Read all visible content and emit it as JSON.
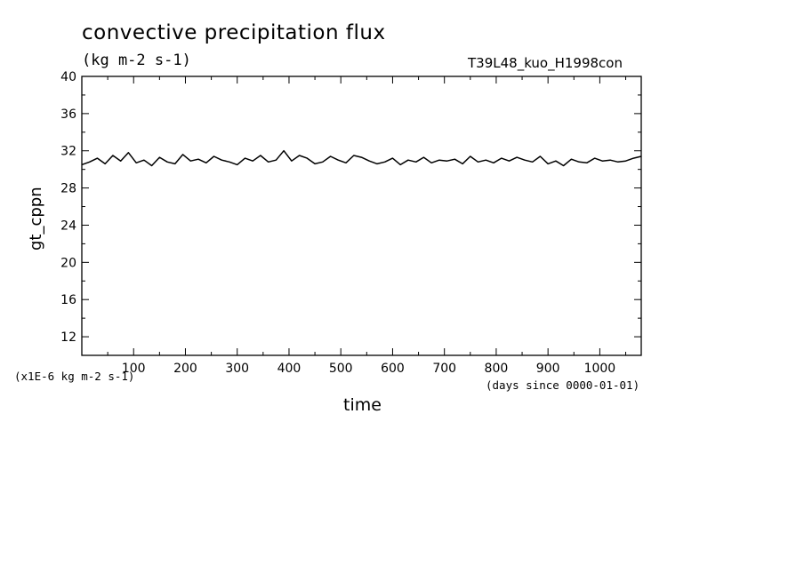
{
  "chart_data": {
    "type": "line",
    "title": "convective precipitation flux",
    "units": "(kg m-2 s-1)",
    "run_label": "T39L48_kuo_H1998con",
    "ylabel": "gt_cppn",
    "xlabel": "time",
    "y_scale_note": "(x1E-6 kg m-2 s-1)",
    "x_units_note": "(days since 0000-01-01)",
    "xlim": [
      0,
      1080
    ],
    "ylim": [
      10,
      40
    ],
    "x_ticks": [
      "100",
      "200",
      "300",
      "400",
      "500",
      "600",
      "700",
      "800",
      "900",
      "1000"
    ],
    "x_tick_values": [
      100,
      200,
      300,
      400,
      500,
      600,
      700,
      800,
      900,
      1000
    ],
    "y_ticks": [
      "12",
      "16",
      "20",
      "24",
      "28",
      "32",
      "36",
      "40"
    ],
    "y_tick_values": [
      12,
      16,
      20,
      24,
      28,
      32,
      36,
      40
    ],
    "series": [
      {
        "x": [
          0,
          15,
          30,
          45,
          60,
          75,
          90,
          105,
          120,
          135,
          150,
          165,
          180,
          195,
          210,
          225,
          240,
          255,
          270,
          285,
          300,
          315,
          330,
          345,
          360,
          375,
          390,
          405,
          420,
          435,
          450,
          465,
          480,
          495,
          510,
          525,
          540,
          555,
          570,
          585,
          600,
          615,
          630,
          645,
          660,
          675,
          690,
          705,
          720,
          735,
          750,
          765,
          780,
          795,
          810,
          825,
          840,
          855,
          870,
          885,
          900,
          915,
          930,
          945,
          960,
          975,
          990,
          1005,
          1020,
          1035,
          1050,
          1065,
          1080
        ],
        "values": [
          30.5,
          30.8,
          31.2,
          30.6,
          31.5,
          30.9,
          31.8,
          30.7,
          31.0,
          30.4,
          31.3,
          30.8,
          30.6,
          31.6,
          30.9,
          31.1,
          30.7,
          31.4,
          31.0,
          30.8,
          30.5,
          31.2,
          30.9,
          31.5,
          30.8,
          31.0,
          32.0,
          30.9,
          31.5,
          31.2,
          30.6,
          30.8,
          31.4,
          31.0,
          30.7,
          31.5,
          31.3,
          30.9,
          30.6,
          30.8,
          31.2,
          30.5,
          31.0,
          30.8,
          31.3,
          30.7,
          31.0,
          30.9,
          31.1,
          30.6,
          31.4,
          30.8,
          31.0,
          30.7,
          31.2,
          30.9,
          31.3,
          31.0,
          30.8,
          31.4,
          30.6,
          30.9,
          30.4,
          31.1,
          30.8,
          30.7,
          31.2,
          30.9,
          31.0,
          30.8,
          30.9,
          31.2,
          31.4
        ]
      }
    ]
  }
}
